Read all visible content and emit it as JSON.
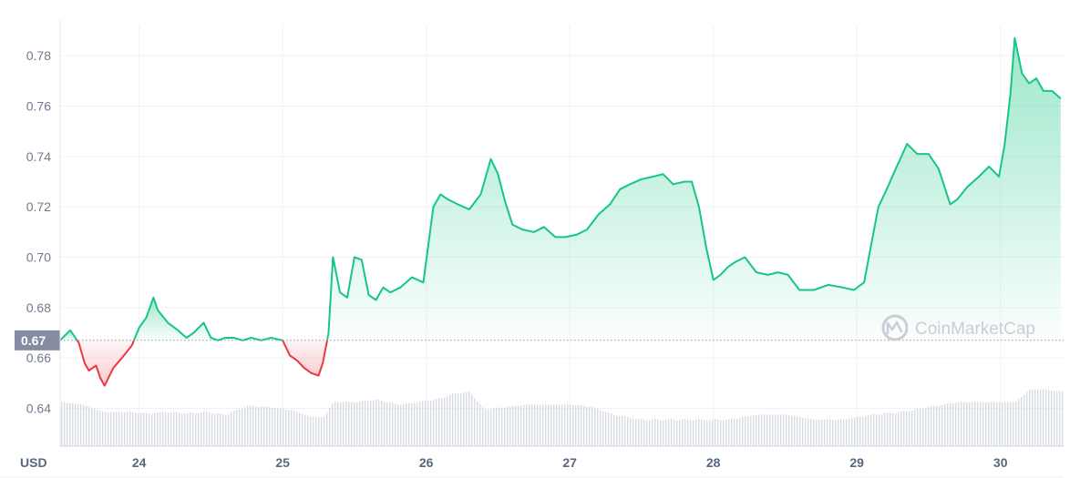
{
  "chart_data": {
    "type": "area",
    "ylim": [
      0.625,
      0.792
    ],
    "xlim": [
      23.45,
      30.44
    ],
    "yticks": [
      {
        "value": 0.64,
        "label": "0.64"
      },
      {
        "value": 0.66,
        "label": "0.66"
      },
      {
        "value": 0.68,
        "label": "0.68"
      },
      {
        "value": 0.7,
        "label": "0.70"
      },
      {
        "value": 0.72,
        "label": "0.72"
      },
      {
        "value": 0.74,
        "label": "0.74"
      },
      {
        "value": 0.76,
        "label": "0.76"
      },
      {
        "value": 0.78,
        "label": "0.78"
      }
    ],
    "xticks": [
      {
        "value": 24,
        "label": "24"
      },
      {
        "value": 25,
        "label": "25"
      },
      {
        "value": 26,
        "label": "26"
      },
      {
        "value": 27,
        "label": "27"
      },
      {
        "value": 28,
        "label": "28"
      },
      {
        "value": 29,
        "label": "29"
      },
      {
        "value": 30,
        "label": "30"
      }
    ],
    "reference_price": 0.667,
    "reference_label": "0.67",
    "unit_label": "USD",
    "watermark": "CoinMarketCap",
    "grid": true,
    "colors": {
      "up": "#16c784",
      "down": "#ea3943",
      "volume": "#d7dbe2",
      "grid": "#eff2f5",
      "badge": "#858ca2"
    },
    "price_series": {
      "x": [
        23.45,
        23.52,
        23.58,
        23.62,
        23.65,
        23.7,
        23.73,
        23.76,
        23.82,
        23.88,
        23.95,
        24.0,
        24.05,
        24.1,
        24.13,
        24.2,
        24.27,
        24.33,
        24.38,
        24.45,
        24.5,
        24.55,
        24.6,
        24.66,
        24.72,
        24.78,
        24.85,
        24.92,
        25.0,
        25.05,
        25.1,
        25.15,
        25.2,
        25.25,
        25.28,
        25.32,
        25.35,
        25.4,
        25.45,
        25.5,
        25.55,
        25.6,
        25.65,
        25.7,
        25.75,
        25.82,
        25.9,
        25.98,
        26.05,
        26.1,
        26.15,
        26.22,
        26.3,
        26.38,
        26.45,
        26.5,
        26.55,
        26.6,
        26.67,
        26.75,
        26.82,
        26.9,
        26.97,
        27.05,
        27.12,
        27.2,
        27.28,
        27.35,
        27.42,
        27.5,
        27.58,
        27.65,
        27.72,
        27.8,
        27.85,
        27.9,
        27.95,
        28.0,
        28.05,
        28.1,
        28.15,
        28.22,
        28.3,
        28.38,
        28.45,
        28.52,
        28.6,
        28.7,
        28.8,
        28.9,
        28.98,
        29.05,
        29.1,
        29.15,
        29.2,
        29.27,
        29.35,
        29.42,
        29.5,
        29.57,
        29.65,
        29.7,
        29.77,
        29.85,
        29.92,
        29.99,
        30.03,
        30.07,
        30.1,
        30.15,
        30.2,
        30.25,
        30.3,
        30.36,
        30.42
      ],
      "y": [
        0.667,
        0.671,
        0.666,
        0.658,
        0.655,
        0.657,
        0.652,
        0.649,
        0.656,
        0.66,
        0.665,
        0.672,
        0.676,
        0.684,
        0.679,
        0.674,
        0.671,
        0.668,
        0.67,
        0.674,
        0.668,
        0.667,
        0.668,
        0.668,
        0.667,
        0.668,
        0.667,
        0.668,
        0.667,
        0.661,
        0.659,
        0.656,
        0.654,
        0.653,
        0.658,
        0.67,
        0.7,
        0.686,
        0.684,
        0.7,
        0.699,
        0.685,
        0.683,
        0.688,
        0.686,
        0.688,
        0.692,
        0.69,
        0.72,
        0.725,
        0.723,
        0.721,
        0.719,
        0.725,
        0.739,
        0.733,
        0.722,
        0.713,
        0.711,
        0.71,
        0.712,
        0.708,
        0.708,
        0.709,
        0.711,
        0.717,
        0.721,
        0.727,
        0.729,
        0.731,
        0.732,
        0.733,
        0.729,
        0.73,
        0.73,
        0.72,
        0.704,
        0.691,
        0.693,
        0.696,
        0.698,
        0.7,
        0.694,
        0.693,
        0.694,
        0.693,
        0.687,
        0.687,
        0.689,
        0.688,
        0.687,
        0.69,
        0.705,
        0.72,
        0.726,
        0.735,
        0.745,
        0.741,
        0.741,
        0.735,
        0.721,
        0.723,
        0.728,
        0.732,
        0.736,
        0.732,
        0.745,
        0.765,
        0.787,
        0.773,
        0.769,
        0.771,
        0.766,
        0.766,
        0.763
      ]
    },
    "volume_series": {
      "x": [
        23.45,
        23.6,
        23.75,
        23.9,
        24.05,
        24.2,
        24.35,
        24.45,
        24.6,
        24.75,
        24.9,
        25.05,
        25.2,
        25.28,
        25.35,
        25.5,
        25.65,
        25.8,
        25.95,
        26.1,
        26.2,
        26.3,
        26.4,
        26.55,
        26.7,
        26.85,
        27.0,
        27.15,
        27.3,
        27.5,
        27.7,
        27.9,
        28.1,
        28.3,
        28.5,
        28.7,
        28.9,
        29.1,
        29.3,
        29.5,
        29.7,
        29.9,
        30.1,
        30.2,
        30.3,
        30.44
      ],
      "y": [
        0.6425,
        0.6415,
        0.6385,
        0.6385,
        0.638,
        0.6385,
        0.638,
        0.6385,
        0.6375,
        0.641,
        0.6405,
        0.6395,
        0.6365,
        0.6365,
        0.6425,
        0.6425,
        0.6435,
        0.6415,
        0.6425,
        0.644,
        0.646,
        0.6465,
        0.6395,
        0.6405,
        0.6415,
        0.6415,
        0.6415,
        0.6405,
        0.6375,
        0.6355,
        0.6355,
        0.6355,
        0.6355,
        0.6375,
        0.6375,
        0.6355,
        0.6355,
        0.6375,
        0.6385,
        0.6405,
        0.6425,
        0.6425,
        0.6425,
        0.6475,
        0.6475,
        0.6465
      ]
    }
  }
}
